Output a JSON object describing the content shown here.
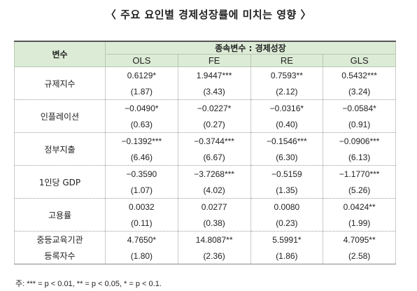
{
  "title": "〈 주요 요인별 경제성장률에 미치는 영향 〉",
  "table": {
    "header": {
      "variable": "변수",
      "dependent": "종속변수 : 경제성장",
      "models": [
        "OLS",
        "FE",
        "RE",
        "GLS"
      ]
    },
    "rows": [
      {
        "name_lines": [
          "규제지수"
        ],
        "coef": [
          "0.6129*",
          "1.9447***",
          "0.7593**",
          "0.5432***"
        ],
        "se": [
          "(1.87)",
          "(3.43)",
          "(2.12)",
          "(3.24)"
        ]
      },
      {
        "name_lines": [
          "인플레이션"
        ],
        "coef": [
          "−0.0490*",
          "−0.0227*",
          "−0.0316*",
          "−0.0584*"
        ],
        "se": [
          "(0.63)",
          "(0.27)",
          "(0.40)",
          "(0.91)"
        ]
      },
      {
        "name_lines": [
          "정부지출"
        ],
        "coef": [
          "−0.1392***",
          "−0.3744***",
          "−0.1546***",
          "−0.0906***"
        ],
        "se": [
          "(6.46)",
          "(6.67)",
          "(6.30)",
          "(6.13)"
        ]
      },
      {
        "name_lines": [
          "1인당 GDP"
        ],
        "coef": [
          "−0.3590",
          "−3.7268***",
          "−0.5159",
          "−1.1770***"
        ],
        "se": [
          "(1.07)",
          "(4.02)",
          "(1.35)",
          "(5.26)"
        ]
      },
      {
        "name_lines": [
          "고용률"
        ],
        "coef": [
          "0.0032",
          "0.0277",
          "0.0080",
          "0.0424**"
        ],
        "se": [
          "(0.11)",
          "(0.38)",
          "(0.23)",
          "(1.99)"
        ]
      },
      {
        "name_lines": [
          "중등교육기관",
          "등록자수"
        ],
        "coef": [
          "4.7650*",
          "14.8087**",
          "5.5991*",
          "4.7095**"
        ],
        "se": [
          "(1.80)",
          "(2.36)",
          "(1.86)",
          "(2.58)"
        ]
      }
    ]
  },
  "note": "주: *** = p < 0.01, ** = p < 0.05, * = p < 0.1."
}
